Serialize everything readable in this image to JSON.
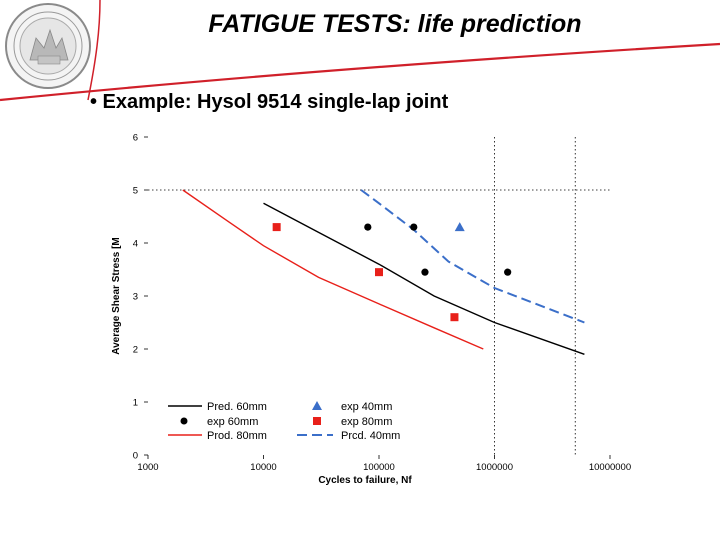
{
  "slide": {
    "title": "FATIGUE TESTS: life prediction",
    "bullet": "• Example: Hysol 9514 single-lap joint"
  },
  "colors": {
    "red": "#e8201a",
    "blue": "#3b6fc9",
    "black": "#000000",
    "swoosh": "#d0202a",
    "seal": "#8a8a8a"
  },
  "chart_data": {
    "type": "line",
    "xlabel": "Cycles to failure, Nf",
    "ylabel": "Average Shear Stress [M",
    "x_scale": "log",
    "xlim": [
      1000,
      10000000
    ],
    "ylim": [
      0,
      6
    ],
    "x_tick_labels": [
      "1000",
      "10000",
      "100000",
      "1000000",
      "10000000"
    ],
    "y_tick_labels": [
      "0",
      "1",
      "2",
      "3",
      "4",
      "5",
      "6"
    ],
    "reference_lines": [
      {
        "axis": "y",
        "value": 5
      },
      {
        "axis": "x",
        "value": 1000000
      },
      {
        "axis": "x",
        "value": 5000000
      }
    ],
    "series": [
      {
        "name": "Pred. 60mm",
        "kind": "line",
        "style": "solid",
        "color": "#000000",
        "x": [
          10000,
          30000,
          100000,
          300000,
          1000000,
          6000000
        ],
        "y": [
          4.75,
          4.2,
          3.6,
          3.0,
          2.5,
          1.9
        ]
      },
      {
        "name": "Prod. 80mm",
        "kind": "line",
        "style": "solid",
        "color": "#e8201a",
        "x": [
          2000,
          5000,
          10000,
          30000,
          100000,
          300000,
          800000
        ],
        "y": [
          5.0,
          4.4,
          3.95,
          3.35,
          2.85,
          2.4,
          2.0
        ]
      },
      {
        "name": "Prcd. 40mm",
        "kind": "line",
        "style": "dashed",
        "color": "#3b6fc9",
        "x": [
          70000,
          100000,
          200000,
          400000,
          1000000,
          6000000
        ],
        "y": [
          5.0,
          4.75,
          4.25,
          3.65,
          3.15,
          2.5
        ]
      },
      {
        "name": "exp 60mm",
        "kind": "marker",
        "marker": "circle",
        "color": "#000000",
        "x": [
          80000,
          200000,
          250000,
          1300000
        ],
        "y": [
          4.3,
          4.3,
          3.45,
          3.45
        ]
      },
      {
        "name": "exp 80mm",
        "kind": "marker",
        "marker": "square",
        "color": "#e8201a",
        "x": [
          13000,
          100000,
          450000
        ],
        "y": [
          4.3,
          3.45,
          2.6
        ]
      },
      {
        "name": "exp 40mm",
        "kind": "marker",
        "marker": "triangle",
        "color": "#3b6fc9",
        "x": [
          500000
        ],
        "y": [
          4.3
        ]
      }
    ],
    "legend": {
      "placement": "bottom",
      "entries": [
        {
          "label": "Pred. 60mm",
          "sym": "line",
          "color": "#000000"
        },
        {
          "label": "exp 60mm",
          "sym": "circle",
          "color": "#000000"
        },
        {
          "label": "Prod. 80mm",
          "sym": "line",
          "color": "#e8201a"
        },
        {
          "label": "exp 40mm",
          "sym": "triangle",
          "color": "#3b6fc9"
        },
        {
          "label": "exp 80mm",
          "sym": "square",
          "color": "#e8201a"
        },
        {
          "label": "Prcd. 40mm",
          "sym": "dashed",
          "color": "#3b6fc9"
        }
      ]
    }
  }
}
